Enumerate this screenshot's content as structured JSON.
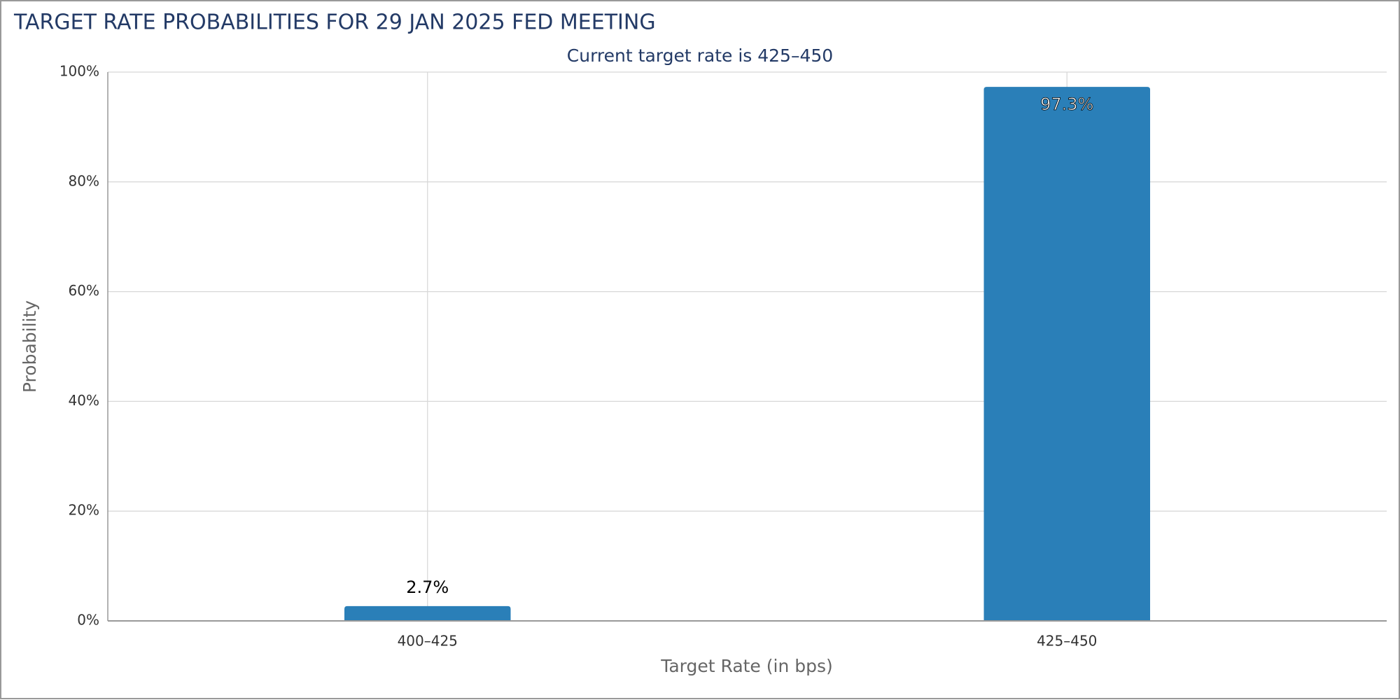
{
  "chart_data": {
    "type": "bar",
    "title": "TARGET RATE PROBABILITIES FOR 29 JAN 2025 FED MEETING",
    "subtitle": "Current target rate is 425–450",
    "x_label": "Target Rate (in bps)",
    "y_label": "Probability",
    "categories": [
      "400–425",
      "425–450"
    ],
    "values": [
      2.7,
      97.3
    ],
    "value_labels": [
      "2.7%",
      "97.3%"
    ],
    "color": "#2a7fb8",
    "ylim": [
      0,
      100
    ],
    "yticks": [
      {
        "value": 0,
        "label": "0%"
      },
      {
        "value": 20,
        "label": "20%"
      },
      {
        "value": 40,
        "label": "40%"
      },
      {
        "value": 60,
        "label": "60%"
      },
      {
        "value": 80,
        "label": "80%"
      },
      {
        "value": 100,
        "label": "100%"
      }
    ],
    "grid": true
  }
}
